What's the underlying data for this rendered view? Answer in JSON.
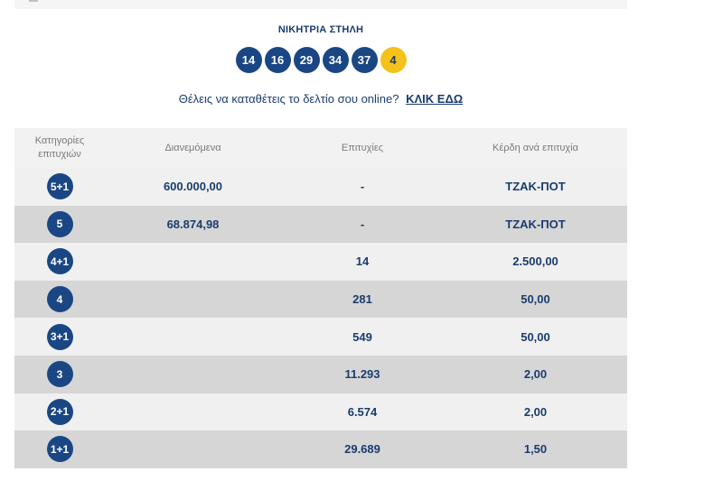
{
  "header": {
    "winning_title": "ΝΙΚΗΤΡΙΑ ΣΤΗΛΗ",
    "numbers": [
      "14",
      "16",
      "29",
      "34",
      "37"
    ],
    "joker": "4"
  },
  "online": {
    "text": "Θέλεις να καταθέτεις το δελτίο σου online?",
    "link": "ΚΛΙΚ ΕΔΩ"
  },
  "table": {
    "headers": {
      "category_line1": "Κατηγορίες",
      "category_line2": "επιτυχιών",
      "distributed": "Διανεμόμενα",
      "winners": "Επιτυχίες",
      "prize": "Κέρδη ανά επιτυχία"
    },
    "rows": [
      {
        "category": "5+1",
        "distributed": "600.000,00",
        "winners": "-",
        "prize": "ΤΖΑΚ-ΠΟΤ"
      },
      {
        "category": "5",
        "distributed": "68.874,98",
        "winners": "-",
        "prize": "ΤΖΑΚ-ΠΟΤ"
      },
      {
        "category": "4+1",
        "distributed": "",
        "winners": "14",
        "prize": "2.500,00"
      },
      {
        "category": "4",
        "distributed": "",
        "winners": "281",
        "prize": "50,00"
      },
      {
        "category": "3+1",
        "distributed": "",
        "winners": "549",
        "prize": "50,00"
      },
      {
        "category": "3",
        "distributed": "",
        "winners": "11.293",
        "prize": "2,00"
      },
      {
        "category": "2+1",
        "distributed": "",
        "winners": "6.574",
        "prize": "2,00"
      },
      {
        "category": "1+1",
        "distributed": "",
        "winners": "29.689",
        "prize": "1,50"
      }
    ]
  },
  "colors": {
    "navy": "#1a4784",
    "text_navy": "#1a3c6e",
    "joker_yellow": "#f4c21b",
    "row_light": "#f0f0f0",
    "row_dark": "#d6d6d6"
  }
}
